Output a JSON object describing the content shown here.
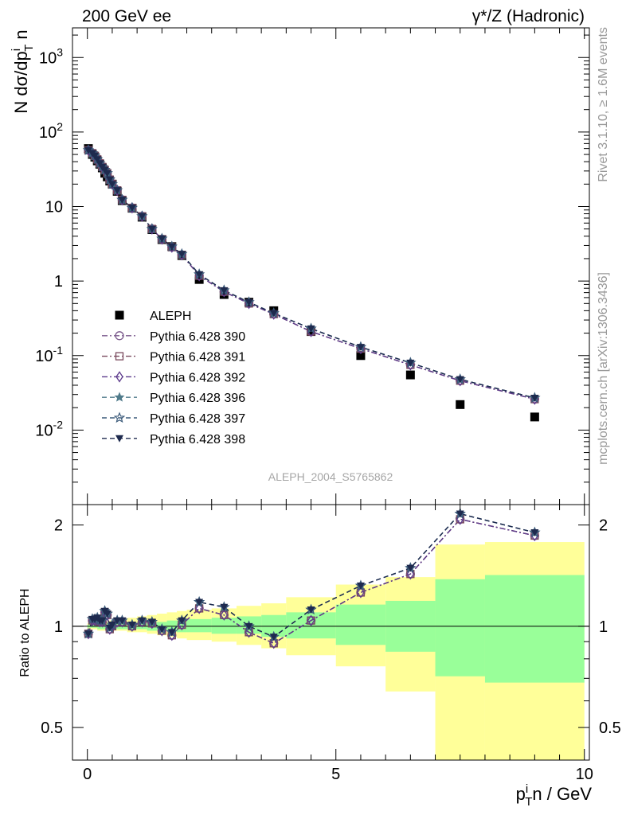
{
  "header": {
    "left": "200 GeV ee",
    "right": "γ*/Z (Hadronic)"
  },
  "side_text": {
    "rivet": "Rivet 3.1.10, ≥ 1.6M events",
    "mcplots": "mcplots.cern.ch [arXiv:1306.3436]"
  },
  "watermark": "ALEPH_2004_S5765862",
  "chart_data": [
    {
      "type": "scatter",
      "panel": "main",
      "yscale": "log",
      "xlabel": "p_T^i n / GeV",
      "ylabel": "N dσ/dp_T^i n",
      "xlim": [
        -0.3,
        10.1
      ],
      "ylim": [
        0.001,
        2500
      ],
      "y_tick_labels": [
        "10^-2",
        "10^-1",
        "1",
        "10",
        "10^2",
        "10^3"
      ],
      "legend_position": "lower-left",
      "series": [
        {
          "name": "ALEPH",
          "marker": "filled-square",
          "color": "#000000",
          "x": [
            0.02,
            0.1,
            0.15,
            0.2,
            0.25,
            0.3,
            0.35,
            0.4,
            0.45,
            0.5,
            0.6,
            0.7,
            0.9,
            1.1,
            1.3,
            1.5,
            1.7,
            1.9,
            2.25,
            2.75,
            3.25,
            3.75,
            4.5,
            5.5,
            6.5,
            7.5,
            9.0
          ],
          "y": [
            60,
            50,
            46,
            41,
            37,
            33,
            28,
            25,
            22,
            20,
            16,
            12,
            9.5,
            7.2,
            4.9,
            3.6,
            2.9,
            2.2,
            1.05,
            0.66,
            0.52,
            0.4,
            0.21,
            0.1,
            0.055,
            0.022,
            0.015
          ]
        },
        {
          "name": "Pythia 6.428 390",
          "marker": "open-circle",
          "line": "dash-dot",
          "color": "#7b5a8c",
          "x": [
            0.02,
            0.1,
            0.15,
            0.2,
            0.25,
            0.3,
            0.35,
            0.4,
            0.45,
            0.5,
            0.6,
            0.7,
            0.9,
            1.1,
            1.3,
            1.5,
            1.7,
            1.9,
            2.25,
            2.75,
            3.25,
            3.75,
            4.5,
            5.5,
            6.5,
            7.5,
            9.0
          ],
          "y": [
            57,
            52,
            48,
            43,
            38,
            34,
            31,
            28,
            23,
            20,
            16.5,
            12.3,
            9.6,
            7.4,
            5.0,
            3.65,
            2.85,
            2.25,
            1.18,
            0.72,
            0.5,
            0.36,
            0.21,
            0.124,
            0.075,
            0.046,
            0.026
          ]
        },
        {
          "name": "Pythia 6.428 391",
          "marker": "open-square",
          "line": "dash-dot",
          "color": "#7a4a5e",
          "x": [
            0.02,
            0.1,
            0.15,
            0.2,
            0.25,
            0.3,
            0.35,
            0.4,
            0.45,
            0.5,
            0.6,
            0.7,
            0.9,
            1.1,
            1.3,
            1.5,
            1.7,
            1.9,
            2.25,
            2.75,
            3.25,
            3.75,
            4.5,
            5.5,
            6.5,
            7.5,
            9.0
          ],
          "y": [
            57,
            52,
            48,
            43,
            38,
            34,
            31,
            28,
            23,
            20,
            16.5,
            12.3,
            9.6,
            7.4,
            5.0,
            3.65,
            2.85,
            2.25,
            1.18,
            0.72,
            0.5,
            0.36,
            0.21,
            0.124,
            0.075,
            0.046,
            0.026
          ]
        },
        {
          "name": "Pythia 6.428 392",
          "marker": "open-diamond",
          "line": "dash-dot",
          "color": "#5d3b8c",
          "x": [
            0.02,
            0.1,
            0.15,
            0.2,
            0.25,
            0.3,
            0.35,
            0.4,
            0.45,
            0.5,
            0.6,
            0.7,
            0.9,
            1.1,
            1.3,
            1.5,
            1.7,
            1.9,
            2.25,
            2.75,
            3.25,
            3.75,
            4.5,
            5.5,
            6.5,
            7.5,
            9.0
          ],
          "y": [
            57,
            52,
            48,
            43,
            38,
            34,
            31,
            28,
            23,
            20,
            16.5,
            12.3,
            9.6,
            7.4,
            5.0,
            3.65,
            2.85,
            2.25,
            1.18,
            0.72,
            0.5,
            0.36,
            0.21,
            0.124,
            0.075,
            0.046,
            0.026
          ]
        },
        {
          "name": "Pythia 6.428 396",
          "marker": "filled-star",
          "line": "dashed",
          "color": "#4f7a8a",
          "x": [
            0.02,
            0.1,
            0.15,
            0.2,
            0.25,
            0.3,
            0.35,
            0.4,
            0.45,
            0.5,
            0.6,
            0.7,
            0.9,
            1.1,
            1.3,
            1.5,
            1.7,
            1.9,
            2.25,
            2.75,
            3.25,
            3.75,
            4.5,
            5.5,
            6.5,
            7.5,
            9.0
          ],
          "y": [
            57,
            52,
            48,
            43,
            38,
            34,
            31,
            28,
            23,
            20,
            16.5,
            12.3,
            9.6,
            7.4,
            5.0,
            3.7,
            2.9,
            2.3,
            1.23,
            0.75,
            0.52,
            0.37,
            0.23,
            0.13,
            0.08,
            0.048,
            0.027
          ]
        },
        {
          "name": "Pythia 6.428 397",
          "marker": "open-star",
          "line": "dashed",
          "color": "#3b5a7a",
          "x": [
            0.02,
            0.1,
            0.15,
            0.2,
            0.25,
            0.3,
            0.35,
            0.4,
            0.45,
            0.5,
            0.6,
            0.7,
            0.9,
            1.1,
            1.3,
            1.5,
            1.7,
            1.9,
            2.25,
            2.75,
            3.25,
            3.75,
            4.5,
            5.5,
            6.5,
            7.5,
            9.0
          ],
          "y": [
            57,
            52,
            48,
            43,
            38,
            34,
            31,
            28,
            23,
            20,
            16.5,
            12.3,
            9.6,
            7.4,
            5.0,
            3.7,
            2.9,
            2.3,
            1.23,
            0.75,
            0.52,
            0.37,
            0.23,
            0.13,
            0.08,
            0.048,
            0.027
          ]
        },
        {
          "name": "Pythia 6.428 398",
          "marker": "filled-triangle-down",
          "line": "dashed",
          "color": "#1e2a4e",
          "x": [
            0.02,
            0.1,
            0.15,
            0.2,
            0.25,
            0.3,
            0.35,
            0.4,
            0.45,
            0.5,
            0.6,
            0.7,
            0.9,
            1.1,
            1.3,
            1.5,
            1.7,
            1.9,
            2.25,
            2.75,
            3.25,
            3.75,
            4.5,
            5.5,
            6.5,
            7.5,
            9.0
          ],
          "y": [
            57,
            52,
            48,
            43,
            38,
            34,
            31,
            28,
            23,
            20,
            16.5,
            12.3,
            9.6,
            7.4,
            5.0,
            3.7,
            2.9,
            2.3,
            1.23,
            0.75,
            0.52,
            0.37,
            0.23,
            0.13,
            0.08,
            0.048,
            0.027
          ]
        }
      ]
    },
    {
      "type": "line",
      "panel": "ratio",
      "xlabel": "p_T^i n / GeV",
      "ylabel": "Ratio to ALEPH",
      "xlim": [
        -0.3,
        10.1
      ],
      "ylim": [
        0.4,
        2.3
      ],
      "x_ticks": [
        0,
        5,
        10
      ],
      "y_ticks": [
        0.5,
        1,
        2
      ],
      "reference_line": 1,
      "bands": {
        "bin_edges": [
          0,
          0.2,
          0.4,
          0.6,
          0.8,
          1.0,
          1.2,
          1.4,
          1.6,
          1.8,
          2.0,
          2.5,
          3.0,
          3.5,
          4.0,
          5.0,
          6.0,
          7.0,
          8.0,
          10.0
        ],
        "yellow_lower": [
          0.98,
          0.97,
          0.97,
          0.97,
          0.96,
          0.96,
          0.95,
          0.94,
          0.93,
          0.92,
          0.91,
          0.9,
          0.88,
          0.86,
          0.82,
          0.76,
          0.64,
          0.3,
          0.3
        ],
        "yellow_upper": [
          1.02,
          1.03,
          1.04,
          1.05,
          1.06,
          1.07,
          1.08,
          1.09,
          1.1,
          1.11,
          1.12,
          1.13,
          1.15,
          1.17,
          1.22,
          1.33,
          1.4,
          1.75,
          1.78
        ],
        "green_lower": [
          0.99,
          0.98,
          0.98,
          0.98,
          0.98,
          0.98,
          0.97,
          0.97,
          0.97,
          0.96,
          0.96,
          0.95,
          0.95,
          0.93,
          0.92,
          0.88,
          0.84,
          0.71,
          0.68
        ],
        "green_upper": [
          1.01,
          1.01,
          1.02,
          1.02,
          1.02,
          1.03,
          1.03,
          1.03,
          1.04,
          1.04,
          1.05,
          1.06,
          1.07,
          1.08,
          1.1,
          1.16,
          1.19,
          1.38,
          1.42
        ]
      },
      "series": [
        {
          "name": "Pythia 6.428 390",
          "color": "#7b5a8c",
          "x": [
            0.02,
            0.1,
            0.15,
            0.2,
            0.25,
            0.3,
            0.35,
            0.4,
            0.45,
            0.5,
            0.6,
            0.7,
            0.9,
            1.1,
            1.3,
            1.5,
            1.7,
            1.9,
            2.25,
            2.75,
            3.25,
            3.75,
            4.5,
            5.5,
            6.5,
            7.5,
            9.0
          ],
          "y": [
            0.95,
            1.04,
            1.04,
            1.05,
            1.03,
            1.03,
            1.1,
            1.08,
            0.98,
            1.0,
            1.03,
            1.03,
            1.0,
            1.03,
            1.02,
            0.97,
            0.94,
            1.01,
            1.13,
            1.08,
            0.96,
            0.89,
            1.04,
            1.26,
            1.43,
            2.08,
            1.86
          ]
        },
        {
          "name": "Pythia 6.428 391",
          "color": "#7a4a5e",
          "x": [
            0.02,
            0.1,
            0.15,
            0.2,
            0.25,
            0.3,
            0.35,
            0.4,
            0.45,
            0.5,
            0.6,
            0.7,
            0.9,
            1.1,
            1.3,
            1.5,
            1.7,
            1.9,
            2.25,
            2.75,
            3.25,
            3.75,
            4.5,
            5.5,
            6.5,
            7.5,
            9.0
          ],
          "y": [
            0.95,
            1.04,
            1.04,
            1.05,
            1.03,
            1.03,
            1.1,
            1.08,
            0.98,
            1.0,
            1.03,
            1.03,
            1.0,
            1.03,
            1.02,
            0.97,
            0.94,
            1.01,
            1.13,
            1.08,
            0.96,
            0.89,
            1.04,
            1.26,
            1.43,
            2.08,
            1.86
          ]
        },
        {
          "name": "Pythia 6.428 392",
          "color": "#5d3b8c",
          "x": [
            0.02,
            0.1,
            0.15,
            0.2,
            0.25,
            0.3,
            0.35,
            0.4,
            0.45,
            0.5,
            0.6,
            0.7,
            0.9,
            1.1,
            1.3,
            1.5,
            1.7,
            1.9,
            2.25,
            2.75,
            3.25,
            3.75,
            4.5,
            5.5,
            6.5,
            7.5,
            9.0
          ],
          "y": [
            0.95,
            1.04,
            1.04,
            1.05,
            1.03,
            1.03,
            1.1,
            1.08,
            0.98,
            1.0,
            1.03,
            1.03,
            1.0,
            1.03,
            1.02,
            0.97,
            0.94,
            1.01,
            1.13,
            1.08,
            0.96,
            0.89,
            1.04,
            1.26,
            1.43,
            2.08,
            1.86
          ]
        },
        {
          "name": "Pythia 6.428 396",
          "color": "#4f7a8a",
          "x": [
            0.02,
            0.1,
            0.15,
            0.2,
            0.25,
            0.3,
            0.35,
            0.4,
            0.45,
            0.5,
            0.6,
            0.7,
            0.9,
            1.1,
            1.3,
            1.5,
            1.7,
            1.9,
            2.25,
            2.75,
            3.25,
            3.75,
            4.5,
            5.5,
            6.5,
            7.5,
            9.0
          ],
          "y": [
            0.95,
            1.05,
            1.05,
            1.06,
            1.04,
            1.04,
            1.11,
            1.09,
            0.99,
            1.01,
            1.04,
            1.04,
            1.01,
            1.04,
            1.03,
            0.98,
            0.96,
            1.04,
            1.18,
            1.14,
            1.0,
            0.93,
            1.12,
            1.32,
            1.49,
            2.16,
            1.9
          ]
        },
        {
          "name": "Pythia 6.428 397",
          "color": "#3b5a7a",
          "x": [
            0.02,
            0.1,
            0.15,
            0.2,
            0.25,
            0.3,
            0.35,
            0.4,
            0.45,
            0.5,
            0.6,
            0.7,
            0.9,
            1.1,
            1.3,
            1.5,
            1.7,
            1.9,
            2.25,
            2.75,
            3.25,
            3.75,
            4.5,
            5.5,
            6.5,
            7.5,
            9.0
          ],
          "y": [
            0.95,
            1.05,
            1.05,
            1.06,
            1.04,
            1.04,
            1.11,
            1.09,
            0.99,
            1.01,
            1.04,
            1.04,
            1.01,
            1.04,
            1.03,
            0.98,
            0.96,
            1.04,
            1.18,
            1.14,
            1.0,
            0.93,
            1.12,
            1.32,
            1.49,
            2.16,
            1.9
          ]
        },
        {
          "name": "Pythia 6.428 398",
          "color": "#1e2a4e",
          "x": [
            0.02,
            0.1,
            0.15,
            0.2,
            0.25,
            0.3,
            0.35,
            0.4,
            0.45,
            0.5,
            0.6,
            0.7,
            0.9,
            1.1,
            1.3,
            1.5,
            1.7,
            1.9,
            2.25,
            2.75,
            3.25,
            3.75,
            4.5,
            5.5,
            6.5,
            7.5,
            9.0
          ],
          "y": [
            0.95,
            1.05,
            1.05,
            1.06,
            1.04,
            1.04,
            1.11,
            1.09,
            0.99,
            1.01,
            1.04,
            1.04,
            1.01,
            1.04,
            1.03,
            0.98,
            0.96,
            1.04,
            1.18,
            1.14,
            1.0,
            0.93,
            1.12,
            1.32,
            1.49,
            2.16,
            1.9
          ]
        }
      ]
    }
  ]
}
